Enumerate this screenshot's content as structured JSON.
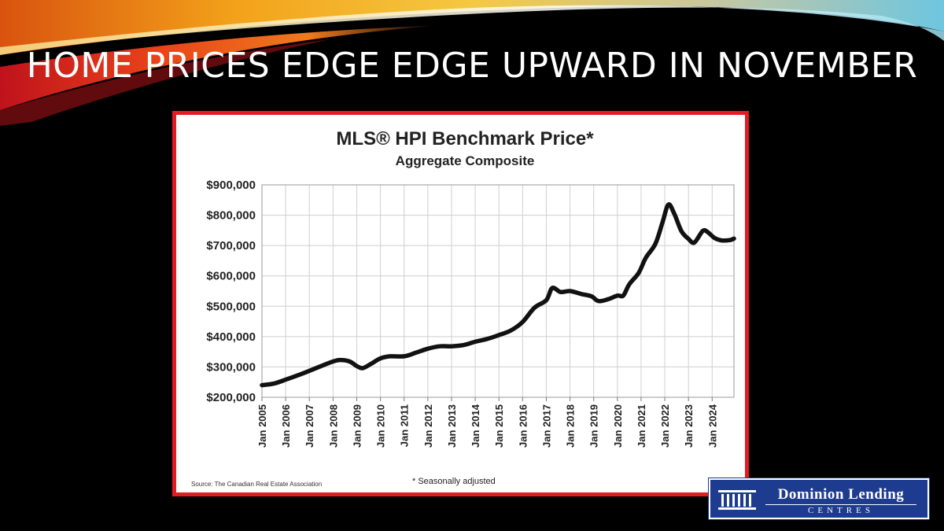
{
  "slide": {
    "title": "HOME PRICES EDGE EDGE UPWARD IN NOVEMBER"
  },
  "logo": {
    "name": "Dominion Lending",
    "subtitle": "CENTRES",
    "color": "#1d3b8f"
  },
  "colors": {
    "frame": "#e31b23",
    "line": "#111111",
    "grid": "#cfcfcf"
  },
  "chart_data": {
    "type": "line",
    "title": "MLS® HPI Benchmark Price*",
    "subtitle": "Aggregate Composite",
    "source": "Source: The Canadian Real Estate Association",
    "footnote": "* Seasonally adjusted",
    "ylim": [
      200000,
      900000
    ],
    "xlim": [
      2005.0,
      2024.92
    ],
    "y_ticks": [
      "$200,000",
      "$300,000",
      "$400,000",
      "$500,000",
      "$600,000",
      "$700,000",
      "$800,000",
      "$900,000"
    ],
    "y_tick_values": [
      200000,
      300000,
      400000,
      500000,
      600000,
      700000,
      800000,
      900000
    ],
    "x_ticks": [
      "Jan 2005",
      "Jan 2006",
      "Jan 2007",
      "Jan 2008",
      "Jan 2009",
      "Jan 2010",
      "Jan 2011",
      "Jan 2012",
      "Jan 2013",
      "Jan 2014",
      "Jan 2015",
      "Jan 2016",
      "Jan 2017",
      "Jan 2018",
      "Jan 2019",
      "Jan 2020",
      "Jan 2021",
      "Jan 2022",
      "Jan 2023",
      "Jan 2024"
    ],
    "x_tick_values": [
      2005,
      2006,
      2007,
      2008,
      2009,
      2010,
      2011,
      2012,
      2013,
      2014,
      2015,
      2016,
      2017,
      2018,
      2019,
      2020,
      2021,
      2022,
      2023,
      2024
    ],
    "grid": true,
    "series": [
      {
        "values": [
          {
            "x": 2005.0,
            "y": 240000
          },
          {
            "x": 2005.5,
            "y": 245000
          },
          {
            "x": 2006.0,
            "y": 258000
          },
          {
            "x": 2006.5,
            "y": 272000
          },
          {
            "x": 2007.0,
            "y": 287000
          },
          {
            "x": 2007.5,
            "y": 303000
          },
          {
            "x": 2008.0,
            "y": 318000
          },
          {
            "x": 2008.3,
            "y": 323000
          },
          {
            "x": 2008.7,
            "y": 318000
          },
          {
            "x": 2009.0,
            "y": 303000
          },
          {
            "x": 2009.25,
            "y": 296000
          },
          {
            "x": 2009.6,
            "y": 310000
          },
          {
            "x": 2010.0,
            "y": 328000
          },
          {
            "x": 2010.4,
            "y": 335000
          },
          {
            "x": 2011.0,
            "y": 335000
          },
          {
            "x": 2011.5,
            "y": 347000
          },
          {
            "x": 2012.0,
            "y": 360000
          },
          {
            "x": 2012.5,
            "y": 368000
          },
          {
            "x": 2013.0,
            "y": 368000
          },
          {
            "x": 2013.5,
            "y": 372000
          },
          {
            "x": 2014.0,
            "y": 383000
          },
          {
            "x": 2014.5,
            "y": 392000
          },
          {
            "x": 2015.0,
            "y": 405000
          },
          {
            "x": 2015.5,
            "y": 420000
          },
          {
            "x": 2016.0,
            "y": 448000
          },
          {
            "x": 2016.5,
            "y": 495000
          },
          {
            "x": 2017.0,
            "y": 520000
          },
          {
            "x": 2017.25,
            "y": 560000
          },
          {
            "x": 2017.6,
            "y": 547000
          },
          {
            "x": 2018.0,
            "y": 550000
          },
          {
            "x": 2018.5,
            "y": 540000
          },
          {
            "x": 2018.9,
            "y": 533000
          },
          {
            "x": 2019.2,
            "y": 517000
          },
          {
            "x": 2019.6,
            "y": 523000
          },
          {
            "x": 2020.0,
            "y": 535000
          },
          {
            "x": 2020.25,
            "y": 535000
          },
          {
            "x": 2020.5,
            "y": 572000
          },
          {
            "x": 2020.9,
            "y": 610000
          },
          {
            "x": 2021.2,
            "y": 660000
          },
          {
            "x": 2021.6,
            "y": 705000
          },
          {
            "x": 2021.9,
            "y": 775000
          },
          {
            "x": 2022.15,
            "y": 835000
          },
          {
            "x": 2022.4,
            "y": 805000
          },
          {
            "x": 2022.7,
            "y": 748000
          },
          {
            "x": 2023.0,
            "y": 722000
          },
          {
            "x": 2023.25,
            "y": 710000
          },
          {
            "x": 2023.6,
            "y": 748000
          },
          {
            "x": 2023.8,
            "y": 745000
          },
          {
            "x": 2024.1,
            "y": 725000
          },
          {
            "x": 2024.4,
            "y": 717000
          },
          {
            "x": 2024.75,
            "y": 718000
          },
          {
            "x": 2024.92,
            "y": 723000
          }
        ]
      }
    ]
  }
}
